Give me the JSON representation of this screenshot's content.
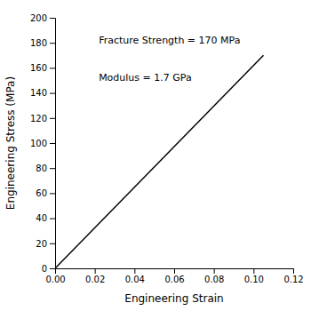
{
  "chart_data": {
    "type": "line",
    "x": [
      0.0,
      0.105
    ],
    "values": [
      0.0,
      170.0
    ],
    "color": "#000000",
    "xlabel": "Engineering Strain",
    "ylabel": "Engineering Stress (MPa)",
    "xlim": [
      0.0,
      0.12
    ],
    "ylim": [
      0,
      200
    ],
    "xticks": [
      {
        "value": 0.0,
        "label": "0.00"
      },
      {
        "value": 0.02,
        "label": "0.02"
      },
      {
        "value": 0.04,
        "label": "0.04"
      },
      {
        "value": 0.06,
        "label": "0.06"
      },
      {
        "value": 0.08,
        "label": "0.08"
      },
      {
        "value": 0.1,
        "label": "0.10"
      },
      {
        "value": 0.12,
        "label": "0.12"
      }
    ],
    "yticks": [
      0,
      20,
      40,
      60,
      80,
      100,
      120,
      140,
      160,
      180,
      200
    ],
    "annotations": [
      {
        "text": "Fracture Strength = 170 MPa",
        "x": 0.022,
        "y": 185
      },
      {
        "text": "Modulus = 1.7 GPa",
        "x": 0.022,
        "y": 155
      }
    ]
  }
}
